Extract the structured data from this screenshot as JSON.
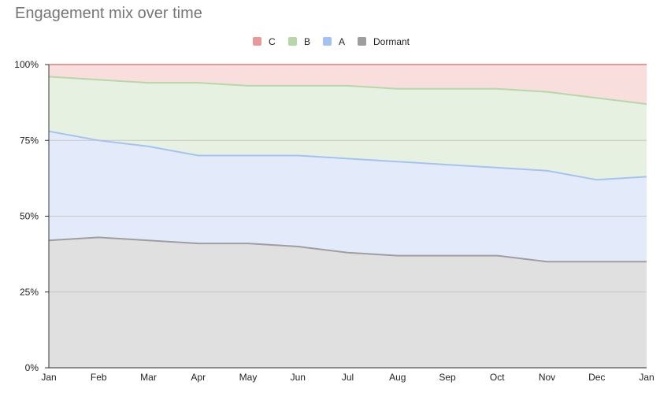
{
  "chart_data": {
    "type": "area",
    "stacked": true,
    "normalized": true,
    "title": "Engagement mix over time",
    "xlabel": "",
    "ylabel": "",
    "categories": [
      "Jan",
      "Feb",
      "Mar",
      "Apr",
      "May",
      "Jun",
      "Jul",
      "Aug",
      "Sep",
      "Oct",
      "Nov",
      "Dec",
      "Jan"
    ],
    "y_ticks": [
      "0%",
      "25%",
      "50%",
      "75%",
      "100%"
    ],
    "ylim": [
      0,
      100
    ],
    "legend_position": "top",
    "grid": true,
    "series": [
      {
        "name": "Dormant",
        "color": "#9e9e9e",
        "fill": "#e0e0e0",
        "values": [
          42,
          43,
          42,
          41,
          41,
          40,
          38,
          37,
          37,
          37,
          35,
          35,
          35
        ]
      },
      {
        "name": "A",
        "color": "#a4c2f4",
        "fill": "#e3ebfb",
        "values": [
          36,
          32,
          31,
          29,
          29,
          30,
          31,
          31,
          30,
          29,
          30,
          27,
          28
        ]
      },
      {
        "name": "B",
        "color": "#b6d7a8",
        "fill": "#e6f1e1",
        "values": [
          18,
          20,
          21,
          24,
          23,
          23,
          24,
          24,
          25,
          26,
          26,
          27,
          24
        ]
      },
      {
        "name": "C",
        "color": "#ea9999",
        "fill": "#f9dede",
        "values": [
          4,
          5,
          6,
          6,
          7,
          7,
          7,
          8,
          8,
          8,
          9,
          11,
          13
        ]
      }
    ],
    "legend_order": [
      "C",
      "B",
      "A",
      "Dormant"
    ]
  }
}
